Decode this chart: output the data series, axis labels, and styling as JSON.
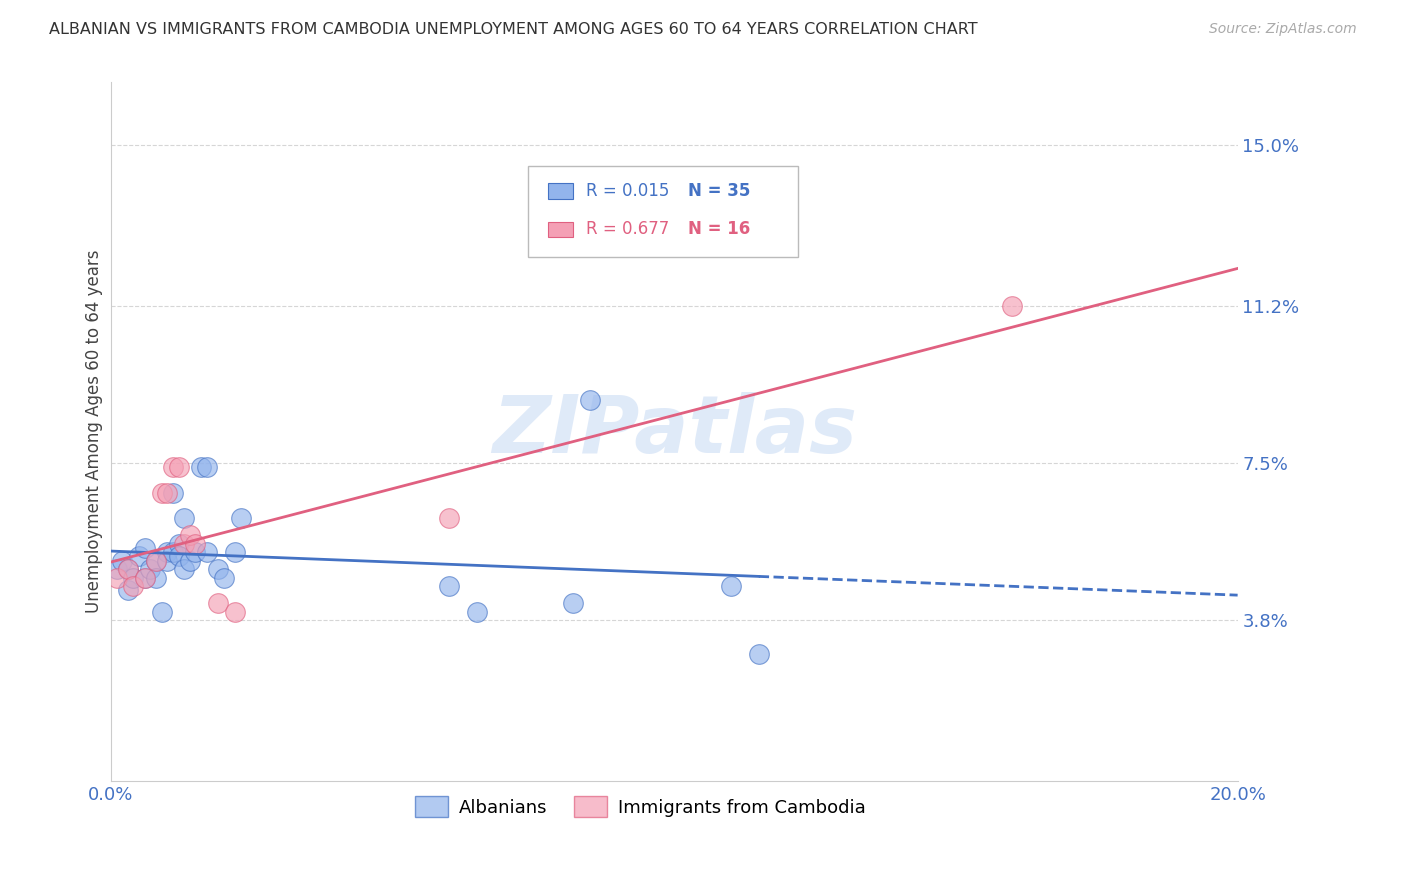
{
  "title": "ALBANIAN VS IMMIGRANTS FROM CAMBODIA UNEMPLOYMENT AMONG AGES 60 TO 64 YEARS CORRELATION CHART",
  "source": "Source: ZipAtlas.com",
  "ylabel": "Unemployment Among Ages 60 to 64 years",
  "xlim": [
    0.0,
    0.2
  ],
  "ylim": [
    0.0,
    0.165
  ],
  "xtick_vals": [
    0.0,
    0.04,
    0.08,
    0.12,
    0.16,
    0.2
  ],
  "xtick_labels": [
    "0.0%",
    "",
    "",
    "",
    "",
    "20.0%"
  ],
  "ytick_values": [
    0.038,
    0.075,
    0.112,
    0.15
  ],
  "ytick_labels": [
    "3.8%",
    "7.5%",
    "11.2%",
    "15.0%"
  ],
  "legend_r1": "R = 0.015",
  "legend_n1": "N = 35",
  "legend_r2": "R = 0.677",
  "legend_n2": "N = 16",
  "color_albanian_fill": "#92b4ec",
  "color_albanian_edge": "#4472c4",
  "color_cambodia_fill": "#f4a0b5",
  "color_cambodia_edge": "#e06080",
  "color_line_albanian": "#4472c4",
  "color_line_cambodia": "#e06080",
  "color_axis_right": "#4472c4",
  "color_title": "#333333",
  "color_source": "#aaaaaa",
  "color_grid": "#cccccc",
  "color_watermark": "#dce8f8",
  "albanians_x": [
    0.001,
    0.002,
    0.003,
    0.003,
    0.004,
    0.005,
    0.006,
    0.006,
    0.007,
    0.008,
    0.008,
    0.009,
    0.01,
    0.01,
    0.011,
    0.011,
    0.012,
    0.012,
    0.013,
    0.013,
    0.014,
    0.015,
    0.016,
    0.017,
    0.017,
    0.019,
    0.02,
    0.022,
    0.023,
    0.06,
    0.065,
    0.082,
    0.085,
    0.11,
    0.115
  ],
  "albanians_y": [
    0.05,
    0.052,
    0.05,
    0.045,
    0.048,
    0.053,
    0.055,
    0.048,
    0.05,
    0.052,
    0.048,
    0.04,
    0.054,
    0.052,
    0.054,
    0.068,
    0.056,
    0.053,
    0.05,
    0.062,
    0.052,
    0.054,
    0.074,
    0.074,
    0.054,
    0.05,
    0.048,
    0.054,
    0.062,
    0.046,
    0.04,
    0.042,
    0.09,
    0.046,
    0.03
  ],
  "cambodia_x": [
    0.001,
    0.003,
    0.004,
    0.006,
    0.008,
    0.009,
    0.01,
    0.011,
    0.012,
    0.013,
    0.014,
    0.015,
    0.019,
    0.022,
    0.06,
    0.16
  ],
  "cambodia_y": [
    0.048,
    0.05,
    0.046,
    0.048,
    0.052,
    0.068,
    0.068,
    0.074,
    0.074,
    0.056,
    0.058,
    0.056,
    0.042,
    0.04,
    0.062,
    0.112
  ],
  "background_color": "#ffffff"
}
